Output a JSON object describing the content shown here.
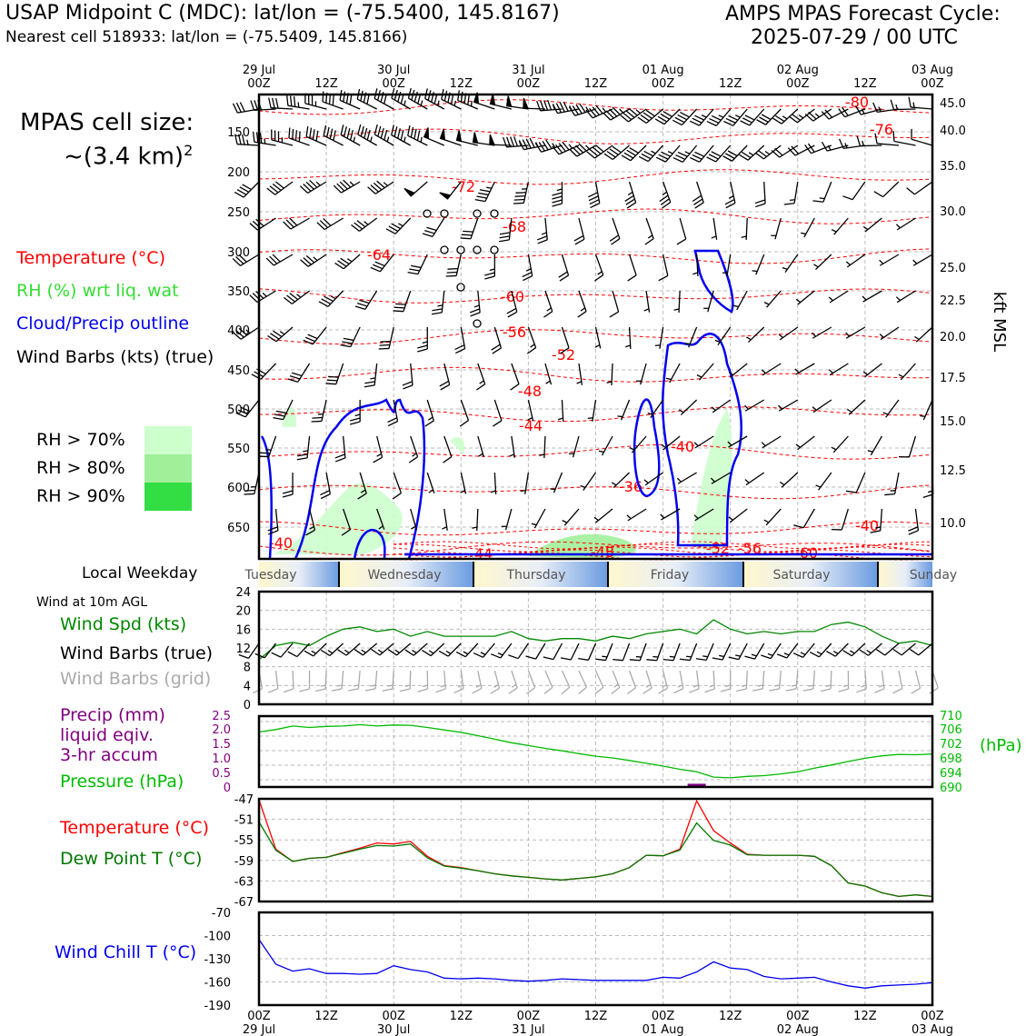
{
  "header": {
    "title_left": "USAP Midpoint C (MDC): lat/lon = (-75.5400, 145.8167)",
    "subtitle_left": "Nearest cell 518933: lat/lon = (-75.5409, 145.8166)",
    "title_right_1": "AMPS MPAS Forecast Cycle:",
    "title_right_2": "2025-07-29 / 00 UTC"
  },
  "sidebar": {
    "cell_size_1": "MPAS cell size:",
    "cell_size_2": "~(3.4 km)",
    "cell_size_sup": "2",
    "legend_temperature": "Temperature (°C)",
    "legend_rh": "RH (%) wrt liq. wat",
    "legend_cloud": "Cloud/Precip outline",
    "legend_wind": "Wind Barbs (kts) (true)",
    "rh_70": "RH > 70%",
    "rh_80": "RH > 80%",
    "rh_90": "RH > 90%",
    "weekday_label": "Local Weekday",
    "wind_10m": "Wind at 10m AGL",
    "wind_spd": "Wind Spd (kts)",
    "wind_barbs_true": "Wind Barbs (true)",
    "wind_barbs_grid": "Wind Barbs (grid)",
    "precip_1": "Precip (mm)",
    "precip_2": "liquid eqiv.",
    "precip_3": "3-hr accum",
    "pressure": "Pressure (hPa)",
    "temperature": "Temperature (°C)",
    "dewpoint": "Dew Point T (°C)",
    "wind_chill": "Wind Chill T (°C)"
  },
  "colors": {
    "temperature": "#ff0000",
    "rh": "#33dd33",
    "cloud": "#0000ee",
    "pressure": "#00bb00",
    "precip": "#800080",
    "dewpoint": "#007700",
    "windchill": "#0000ee",
    "grid_barbs": "#aaaaaa",
    "rh70": "#ccffcc",
    "rh80": "#a2ef9a",
    "rh90": "#33dd44"
  },
  "time_axis": {
    "top_ticks": [
      {
        "day": "29 Jul",
        "hour": "00Z"
      },
      {
        "day": "",
        "hour": "12Z"
      },
      {
        "day": "30 Jul",
        "hour": "00Z"
      },
      {
        "day": "",
        "hour": "12Z"
      },
      {
        "day": "31 Jul",
        "hour": "00Z"
      },
      {
        "day": "",
        "hour": "12Z"
      },
      {
        "day": "01 Aug",
        "hour": "00Z"
      },
      {
        "day": "",
        "hour": "12Z"
      },
      {
        "day": "02 Aug",
        "hour": "00Z"
      },
      {
        "day": "",
        "hour": "12Z"
      },
      {
        "day": "03 Aug",
        "hour": "00Z"
      }
    ],
    "weekdays": [
      "Tuesday",
      "Wednesday",
      "Thursday",
      "Friday",
      "Saturday",
      "Sunday"
    ]
  },
  "chart_data": [
    {
      "type": "line",
      "name": "time-height cross section",
      "x": [
        "29 Jul 00Z",
        "03 Aug 00Z"
      ],
      "xlim_hours": [
        0,
        120
      ],
      "ylabel_right": "kft MSL",
      "left_ticks_hpa": [
        150,
        200,
        250,
        300,
        350,
        400,
        450,
        500,
        550,
        600,
        650
      ],
      "right_ticks_kft": [
        45.0,
        40.0,
        35.0,
        30.0,
        25.0,
        22.5,
        20.0,
        17.5,
        15.0,
        12.5,
        10.0
      ],
      "temperature_labels": [
        "-80",
        "-76",
        "-72",
        "-68",
        "-64",
        "-60",
        "-56",
        "-52",
        "-48",
        "-44",
        "-40",
        "-36",
        "-40",
        "-40",
        "-44",
        "-48",
        "-52",
        "-56",
        "-60"
      ],
      "grid": true
    },
    {
      "type": "line",
      "name": "10m wind",
      "yticks": [
        0,
        4,
        8,
        12,
        16,
        20,
        24
      ],
      "ylim": [
        0,
        24
      ],
      "x_hours": [
        0,
        3,
        6,
        9,
        12,
        15,
        18,
        21,
        24,
        27,
        30,
        33,
        36,
        39,
        42,
        45,
        48,
        51,
        54,
        57,
        60,
        63,
        66,
        69,
        72,
        75,
        78,
        81,
        84,
        87,
        90,
        93,
        96,
        99,
        102,
        105,
        108,
        111,
        114,
        117,
        120
      ],
      "values": [
        9.5,
        12.5,
        13.2,
        12.5,
        14.5,
        16,
        16.5,
        15.5,
        16,
        14.5,
        15.5,
        14.5,
        14.5,
        14.5,
        14.5,
        15.5,
        14,
        13.5,
        14,
        14,
        13.5,
        14.5,
        14,
        15,
        15.5,
        16,
        15,
        18,
        16,
        15,
        15.5,
        15,
        15.5,
        15.5,
        17,
        17.5,
        16.5,
        14.5,
        13,
        13.5,
        12.5
      ],
      "grid": true
    },
    {
      "type": "line",
      "name": "precip and pressure",
      "left_yticks": [
        "2.5",
        "2.0",
        "1.5",
        "1.0",
        "0.5",
        "0"
      ],
      "right_yticks": [
        "710",
        "706",
        "702",
        "698",
        "694",
        "690"
      ],
      "right_label": "(hPa)",
      "x_hours": [
        0,
        3,
        6,
        9,
        12,
        15,
        18,
        21,
        24,
        27,
        30,
        33,
        36,
        39,
        42,
        45,
        48,
        51,
        54,
        57,
        60,
        63,
        66,
        69,
        72,
        75,
        78,
        81,
        84,
        87,
        90,
        93,
        96,
        99,
        102,
        105,
        108,
        111,
        114,
        117,
        120
      ],
      "pressure_hpa": [
        705.5,
        706.2,
        707.2,
        706.8,
        707.1,
        707.2,
        707.6,
        707.2,
        707.5,
        707.4,
        706.8,
        706.1,
        705.4,
        704.5,
        703.5,
        702.5,
        701.7,
        700.9,
        700.2,
        699.4,
        698.7,
        698.2,
        697.5,
        696.7,
        695.9,
        695.0,
        694.3,
        692.8,
        692.6,
        693.0,
        693.2,
        693.7,
        694.3,
        695.3,
        696.2,
        697.2,
        698.1,
        698.8,
        699.2,
        699.1,
        699.3
      ],
      "precip_mm": [
        0,
        0,
        0,
        0,
        0,
        0,
        0,
        0,
        0,
        0,
        0,
        0,
        0,
        0,
        0,
        0,
        0,
        0,
        0,
        0,
        0,
        0,
        0,
        0,
        0,
        0,
        0.05,
        0,
        0,
        0,
        0,
        0,
        0,
        0,
        0,
        0,
        0,
        0,
        0,
        0,
        0
      ],
      "grid": true
    },
    {
      "type": "line",
      "name": "temperature and dewpoint",
      "yticks": [
        "-47",
        "-51",
        "-55",
        "-59",
        "-63",
        "-67"
      ],
      "ylim": [
        -67,
        -47
      ],
      "x_hours": [
        0,
        3,
        6,
        9,
        12,
        15,
        18,
        21,
        24,
        27,
        30,
        33,
        36,
        39,
        42,
        45,
        48,
        51,
        54,
        57,
        60,
        63,
        66,
        69,
        72,
        75,
        78,
        81,
        84,
        87,
        90,
        93,
        96,
        99,
        102,
        105,
        108,
        111,
        114,
        117,
        120
      ],
      "temperature": [
        -47.2,
        -56.8,
        -59.2,
        -58.6,
        -58.4,
        -57.5,
        -56.6,
        -55.6,
        -55.8,
        -55.3,
        -58.2,
        -60.0,
        -60.4,
        -61.0,
        -61.6,
        -62.0,
        -62.3,
        -62.6,
        -62.8,
        -62.5,
        -62.2,
        -61.6,
        -60.4,
        -58.0,
        -58.1,
        -56.8,
        -47.4,
        -53.2,
        -55.6,
        -57.8,
        -58.0,
        -58.0,
        -58.0,
        -58.2,
        -60.0,
        -63.4,
        -64.0,
        -65.3,
        -66.0,
        -65.7,
        -66.0
      ],
      "dewpoint": [
        -51.5,
        -57.0,
        -59.2,
        -58.6,
        -58.4,
        -57.6,
        -56.8,
        -56.1,
        -56.2,
        -55.8,
        -58.5,
        -60.1,
        -60.5,
        -61.0,
        -61.6,
        -62.0,
        -62.3,
        -62.6,
        -62.8,
        -62.5,
        -62.2,
        -61.6,
        -60.4,
        -58.0,
        -58.1,
        -57.0,
        -51.7,
        -55.1,
        -56.0,
        -57.9,
        -58.0,
        -58.0,
        -58.0,
        -58.2,
        -60.0,
        -63.4,
        -64.0,
        -65.3,
        -66.0,
        -65.7,
        -66.0
      ],
      "grid": true
    },
    {
      "type": "line",
      "name": "wind chill",
      "yticks": [
        "-70",
        "-100",
        "-130",
        "-160",
        "-190"
      ],
      "ylim": [
        -190,
        -70
      ],
      "x_hours": [
        0,
        3,
        6,
        9,
        12,
        15,
        18,
        21,
        24,
        27,
        30,
        33,
        36,
        39,
        42,
        45,
        48,
        51,
        54,
        57,
        60,
        63,
        66,
        69,
        72,
        75,
        78,
        81,
        84,
        87,
        90,
        93,
        96,
        99,
        102,
        105,
        108,
        111,
        114,
        117,
        120
      ],
      "values": [
        -105,
        -137,
        -146,
        -143,
        -149,
        -149,
        -150,
        -149,
        -139,
        -144,
        -147,
        -155,
        -156,
        -155,
        -156,
        -158,
        -159,
        -158,
        -156,
        -157,
        -158,
        -158,
        -158,
        -158,
        -154,
        -155,
        -147,
        -134,
        -142,
        -144,
        -153,
        -156,
        -155,
        -154,
        -160,
        -165,
        -168,
        -165,
        -164,
        -163,
        -161
      ],
      "bottom_ticks": [
        {
          "hour": "00Z",
          "day": "29 Jul"
        },
        {
          "hour": "12Z",
          "day": ""
        },
        {
          "hour": "00Z",
          "day": "30 Jul"
        },
        {
          "hour": "12Z",
          "day": ""
        },
        {
          "hour": "00Z",
          "day": "31 Jul"
        },
        {
          "hour": "12Z",
          "day": ""
        },
        {
          "hour": "00Z",
          "day": "01 Aug"
        },
        {
          "hour": "12Z",
          "day": ""
        },
        {
          "hour": "00Z",
          "day": "02 Aug"
        },
        {
          "hour": "12Z",
          "day": ""
        },
        {
          "hour": "00Z",
          "day": "03 Aug"
        }
      ],
      "grid": true
    }
  ]
}
